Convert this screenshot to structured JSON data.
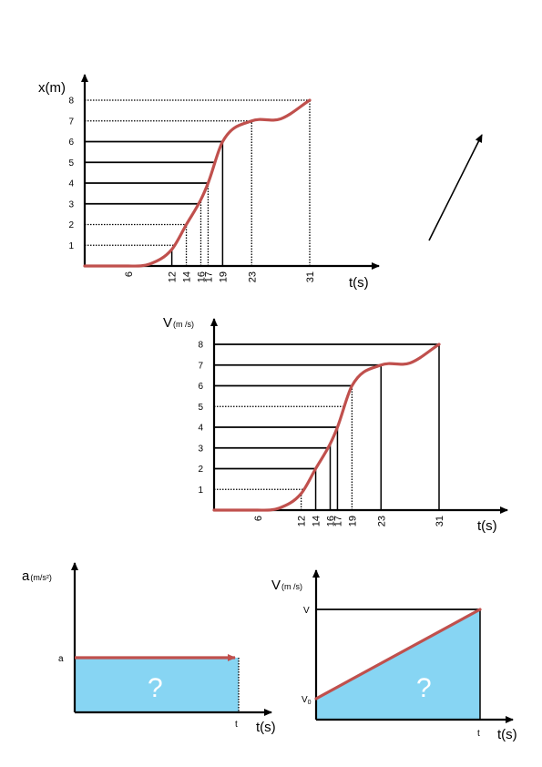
{
  "chart_data": [
    {
      "type": "line",
      "ylabel": "x(m)",
      "xlabel": "t(s)",
      "y_ticks": [
        "1",
        "2",
        "3",
        "4",
        "5",
        "6",
        "7",
        "8"
      ],
      "x_ticks": [
        "6",
        "12",
        "14",
        "16",
        "17",
        "19",
        "23",
        "31"
      ],
      "points": [
        [
          0,
          0
        ],
        [
          6,
          0
        ],
        [
          9,
          0.1
        ],
        [
          12,
          0.8
        ],
        [
          14,
          2
        ],
        [
          16,
          3.2
        ],
        [
          17,
          4
        ],
        [
          19,
          6
        ],
        [
          23,
          7
        ],
        [
          27,
          7.1
        ],
        [
          31,
          8
        ]
      ]
    },
    {
      "type": "line",
      "ylabel": "V",
      "ylabel_unit": "(m /s)",
      "xlabel": "t(s)",
      "y_ticks": [
        "1",
        "2",
        "3",
        "4",
        "5",
        "6",
        "7",
        "8"
      ],
      "x_ticks": [
        "6",
        "12",
        "14",
        "16",
        "17",
        "19",
        "23",
        "31"
      ],
      "points": [
        [
          0,
          0
        ],
        [
          6,
          0
        ],
        [
          9,
          0.1
        ],
        [
          12,
          0.8
        ],
        [
          14,
          2
        ],
        [
          16,
          3.2
        ],
        [
          17,
          4
        ],
        [
          19,
          6
        ],
        [
          23,
          7
        ],
        [
          27,
          7.1
        ],
        [
          31,
          8
        ]
      ]
    },
    {
      "type": "area",
      "ylabel": "a",
      "ylabel_unit": "(m/s²)",
      "xlabel": "t(s)",
      "y_marker": "a",
      "x_marker": "t",
      "area_label": "?"
    },
    {
      "type": "area",
      "ylabel": "V",
      "ylabel_unit": "(m /s)",
      "xlabel": "t(s)",
      "y_marker_top": "V",
      "y_marker_bottom": "V",
      "y_marker_bottom_sub": "0",
      "x_marker": "t",
      "area_label": "?"
    }
  ],
  "colors": {
    "curve": "#c0504d",
    "fill": "#87d5f3",
    "line": "#000000"
  }
}
